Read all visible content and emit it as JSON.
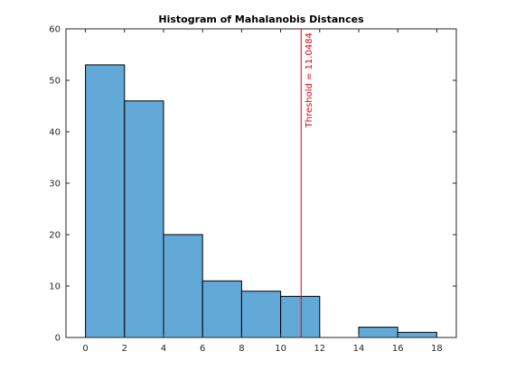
{
  "chart_data": {
    "type": "bar",
    "title": "Histogram of Mahalanobis Distances",
    "xlabel": "",
    "ylabel": "",
    "xlim": [
      -1,
      19
    ],
    "ylim": [
      0,
      60
    ],
    "x_ticks": [
      0,
      2,
      4,
      6,
      8,
      10,
      12,
      14,
      16,
      18
    ],
    "y_ticks": [
      0,
      10,
      20,
      30,
      40,
      50,
      60
    ],
    "bins": [
      {
        "start": 0,
        "end": 2,
        "count": 53
      },
      {
        "start": 2,
        "end": 4,
        "count": 46
      },
      {
        "start": 4,
        "end": 6,
        "count": 20
      },
      {
        "start": 6,
        "end": 8,
        "count": 11
      },
      {
        "start": 8,
        "end": 10,
        "count": 9
      },
      {
        "start": 10,
        "end": 12,
        "count": 8
      },
      {
        "start": 12,
        "end": 14,
        "count": 0
      },
      {
        "start": 14,
        "end": 16,
        "count": 2
      },
      {
        "start": 16,
        "end": 18,
        "count": 1
      }
    ],
    "threshold": {
      "value": 11.0484,
      "label": "Threshold = 11.0484",
      "color": "#e3000f"
    },
    "bar_color": "#62a9d8",
    "bar_edge_color": "#000000",
    "grid": false,
    "legend": "none"
  }
}
